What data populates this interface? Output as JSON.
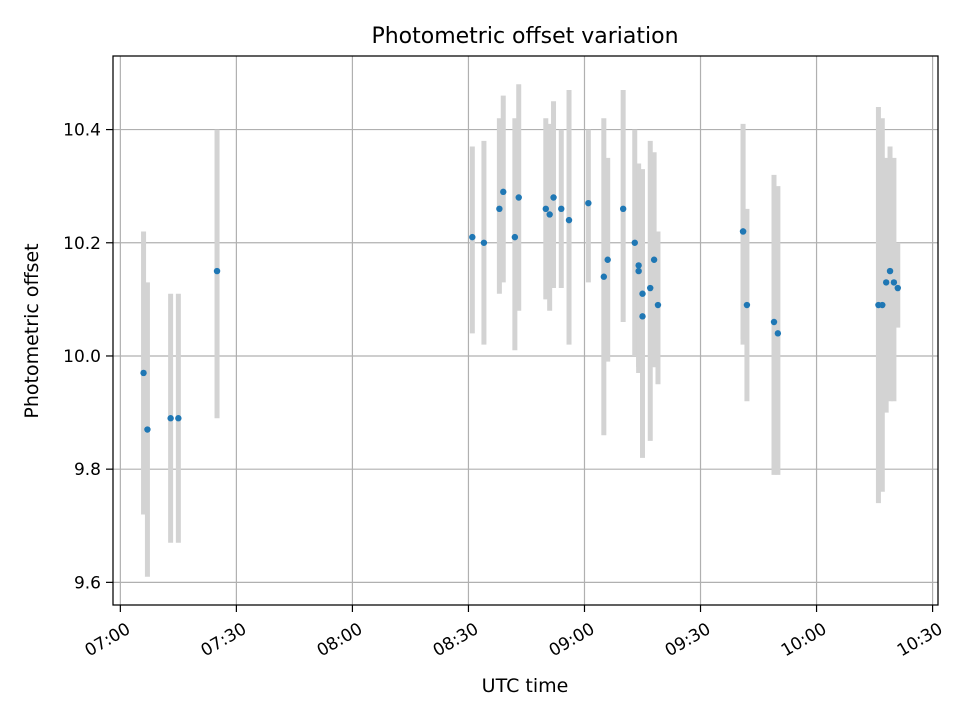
{
  "chart_data": {
    "type": "scatter",
    "title": "Photometric offset variation",
    "xlabel": "UTC time",
    "ylabel": "Photometric offset",
    "xlim": [
      "07:00",
      "10:30"
    ],
    "ylim": [
      9.56,
      10.53
    ],
    "grid": true,
    "x_ticks": [
      "07:00",
      "07:30",
      "08:00",
      "08:30",
      "09:00",
      "09:30",
      "10:00",
      "10:30"
    ],
    "y_ticks": [
      9.6,
      9.8,
      10.0,
      10.2,
      10.4
    ],
    "y_tick_labels": [
      "9.6",
      "9.8",
      "10.0",
      "10.2",
      "10.4"
    ],
    "colors": {
      "points": "#1f77b4",
      "errorbars": "#d3d3d3",
      "grid": "#b0b0b0"
    },
    "points": [
      {
        "t": "07:06",
        "y": 9.97,
        "lo": 9.72,
        "hi": 10.22
      },
      {
        "t": "07:07",
        "y": 9.87,
        "lo": 9.61,
        "hi": 10.13
      },
      {
        "t": "07:13",
        "y": 9.89,
        "lo": 9.67,
        "hi": 10.11
      },
      {
        "t": "07:15",
        "y": 9.89,
        "lo": 9.67,
        "hi": 10.11
      },
      {
        "t": "07:25",
        "y": 10.15,
        "lo": 9.89,
        "hi": 10.4
      },
      {
        "t": "08:31",
        "y": 10.21,
        "lo": 10.04,
        "hi": 10.37
      },
      {
        "t": "08:34",
        "y": 10.2,
        "lo": 10.02,
        "hi": 10.38
      },
      {
        "t": "08:38",
        "y": 10.26,
        "lo": 10.11,
        "hi": 10.42
      },
      {
        "t": "08:39",
        "y": 10.29,
        "lo": 10.13,
        "hi": 10.46
      },
      {
        "t": "08:42",
        "y": 10.21,
        "lo": 10.01,
        "hi": 10.42
      },
      {
        "t": "08:43",
        "y": 10.28,
        "lo": 10.08,
        "hi": 10.48
      },
      {
        "t": "08:50",
        "y": 10.26,
        "lo": 10.1,
        "hi": 10.42
      },
      {
        "t": "08:51",
        "y": 10.25,
        "lo": 10.08,
        "hi": 10.41
      },
      {
        "t": "08:52",
        "y": 10.28,
        "lo": 10.12,
        "hi": 10.45
      },
      {
        "t": "08:54",
        "y": 10.26,
        "lo": 10.12,
        "hi": 10.4
      },
      {
        "t": "08:56",
        "y": 10.24,
        "lo": 10.02,
        "hi": 10.47
      },
      {
        "t": "09:01",
        "y": 10.27,
        "lo": 10.13,
        "hi": 10.4
      },
      {
        "t": "09:05",
        "y": 10.14,
        "lo": 9.86,
        "hi": 10.42
      },
      {
        "t": "09:06",
        "y": 10.17,
        "lo": 9.99,
        "hi": 10.35
      },
      {
        "t": "09:10",
        "y": 10.26,
        "lo": 10.06,
        "hi": 10.47
      },
      {
        "t": "09:13",
        "y": 10.2,
        "lo": 10.0,
        "hi": 10.4
      },
      {
        "t": "09:14",
        "y": 10.16,
        "lo": 9.98,
        "hi": 10.34
      },
      {
        "t": "09:14",
        "y": 10.15,
        "lo": 9.97,
        "hi": 10.33
      },
      {
        "t": "09:15",
        "y": 10.07,
        "lo": 9.82,
        "hi": 10.33
      },
      {
        "t": "09:15",
        "y": 10.11,
        "lo": 9.88,
        "hi": 10.33
      },
      {
        "t": "09:17",
        "y": 10.12,
        "lo": 9.85,
        "hi": 10.38
      },
      {
        "t": "09:18",
        "y": 10.17,
        "lo": 9.98,
        "hi": 10.36
      },
      {
        "t": "09:19",
        "y": 10.09,
        "lo": 9.95,
        "hi": 10.22
      },
      {
        "t": "09:41",
        "y": 10.22,
        "lo": 10.02,
        "hi": 10.41
      },
      {
        "t": "09:41",
        "y": 10.22,
        "lo": 10.03,
        "hi": 10.4
      },
      {
        "t": "09:42",
        "y": 10.09,
        "lo": 9.92,
        "hi": 10.26
      },
      {
        "t": "09:49",
        "y": 10.06,
        "lo": 9.79,
        "hi": 10.32
      },
      {
        "t": "09:50",
        "y": 10.04,
        "lo": 9.79,
        "hi": 10.3
      },
      {
        "t": "10:16",
        "y": 10.09,
        "lo": 9.74,
        "hi": 10.44
      },
      {
        "t": "10:17",
        "y": 10.09,
        "lo": 9.76,
        "hi": 10.42
      },
      {
        "t": "10:18",
        "y": 10.13,
        "lo": 9.9,
        "hi": 10.35
      },
      {
        "t": "10:19",
        "y": 10.15,
        "lo": 9.92,
        "hi": 10.37
      },
      {
        "t": "10:20",
        "y": 10.13,
        "lo": 9.92,
        "hi": 10.35
      },
      {
        "t": "10:21",
        "y": 10.12,
        "lo": 10.05,
        "hi": 10.2
      }
    ]
  }
}
